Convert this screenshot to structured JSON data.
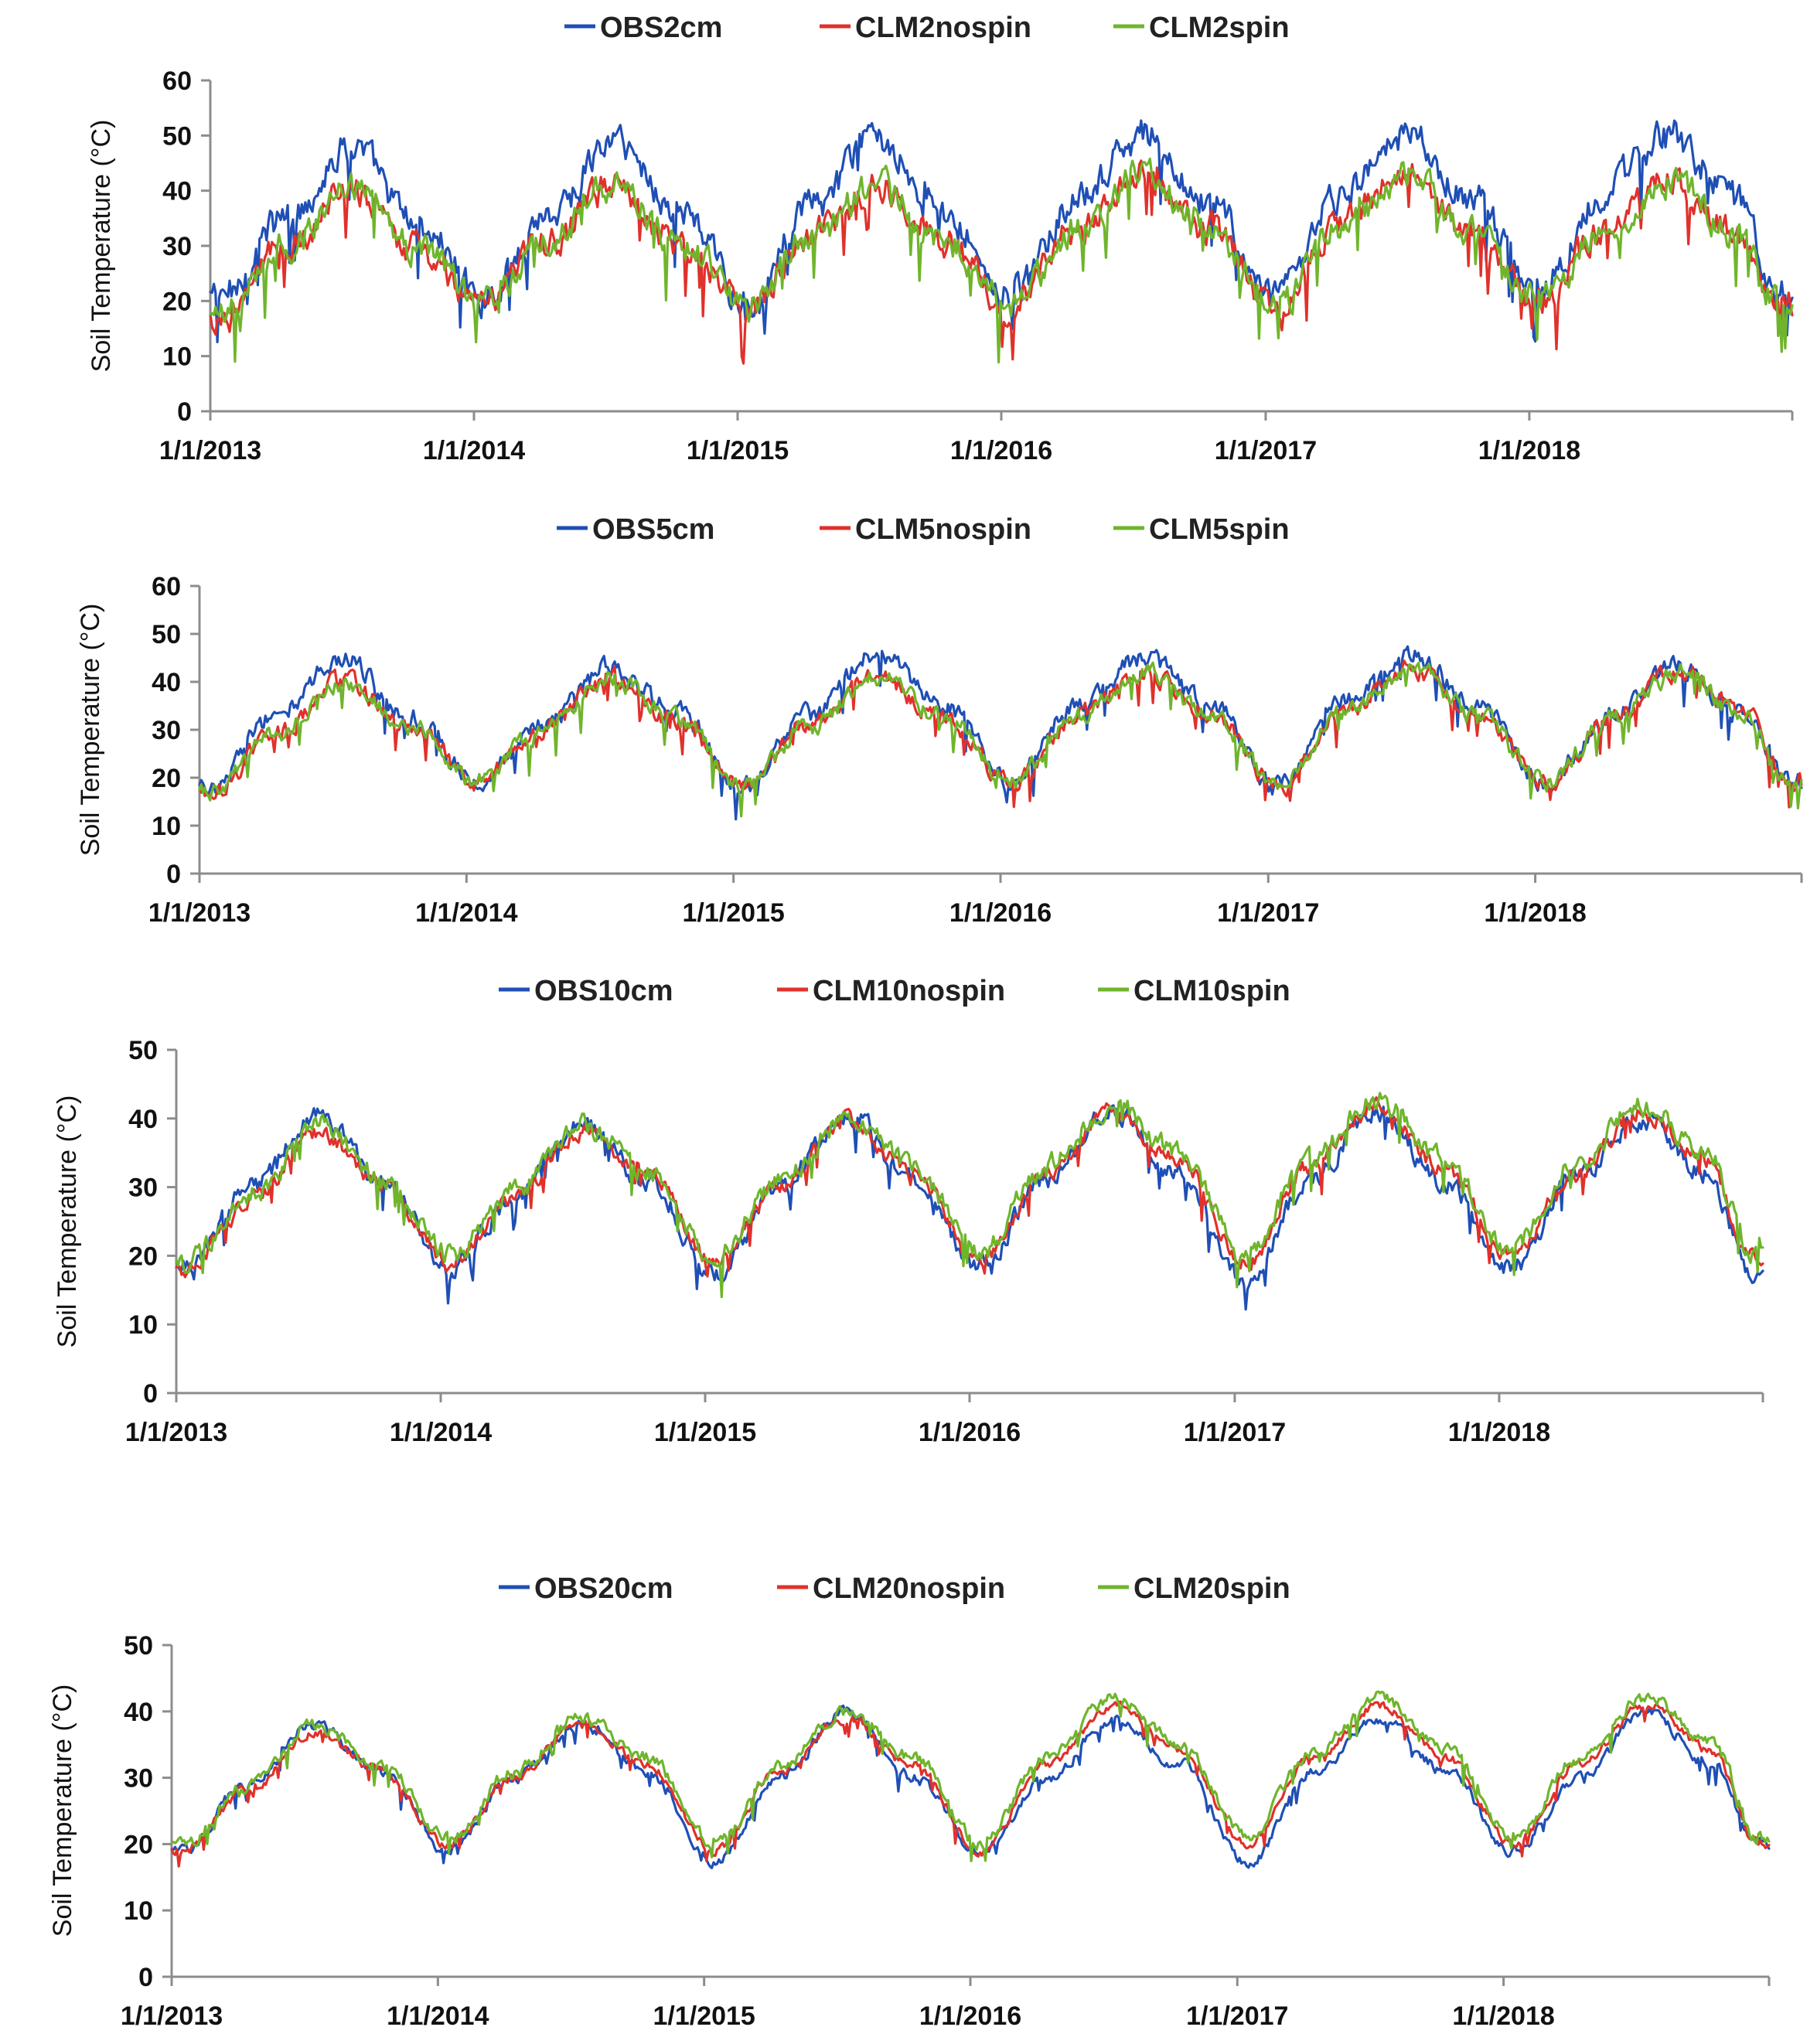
{
  "colors": {
    "obs": "#1f4fb5",
    "nospin": "#e0312b",
    "spin": "#6fb52c"
  },
  "chart_data": [
    {
      "type": "line",
      "depth_cm": 2,
      "ylabel": "Soil Temperature (°C)",
      "ylim": [
        0,
        60
      ],
      "yticks": [
        "0",
        "10",
        "20",
        "30",
        "40",
        "50",
        "60"
      ],
      "xlim": [
        "1/1/2013",
        "12/31/2018"
      ],
      "xticks": [
        "1/1/2013",
        "1/1/2014",
        "1/1/2015",
        "1/1/2016",
        "1/1/2017",
        "1/1/2018"
      ],
      "legend": [
        "OBS2cm",
        "CLM2nospin",
        "CLM2spin"
      ],
      "x": [
        "2013-01",
        "2013-04",
        "2013-07",
        "2013-10",
        "2014-01",
        "2014-04",
        "2014-07",
        "2014-10",
        "2015-01",
        "2015-04",
        "2015-07",
        "2015-10",
        "2016-01",
        "2016-04",
        "2016-07",
        "2016-10",
        "2017-01",
        "2017-04",
        "2017-07",
        "2017-10",
        "2018-01",
        "2018-04",
        "2018-07",
        "2018-10",
        "2018-12"
      ],
      "series": [
        {
          "name": "OBS2cm",
          "values": [
            21,
            35,
            48,
            34,
            21,
            36,
            49,
            36,
            20,
            37,
            50,
            36,
            21,
            38,
            50,
            38,
            20,
            39,
            50,
            38,
            22,
            40,
            50,
            38,
            22
          ]
        },
        {
          "name": "CLM2nospin",
          "values": [
            17,
            30,
            40,
            29,
            20,
            31,
            41,
            30,
            19,
            32,
            41,
            31,
            19,
            33,
            43,
            33,
            19,
            34,
            43,
            32,
            20,
            33,
            42,
            32,
            19
          ]
        },
        {
          "name": "CLM2spin",
          "values": [
            17,
            30,
            40,
            29,
            20,
            31,
            41,
            30,
            19,
            32,
            41,
            31,
            19,
            33,
            43,
            33,
            19,
            34,
            43,
            32,
            20,
            33,
            42,
            32,
            19
          ]
        }
      ]
    },
    {
      "type": "line",
      "depth_cm": 5,
      "ylabel": "Soil Temperature (°C)",
      "ylim": [
        0,
        60
      ],
      "yticks": [
        "0",
        "10",
        "20",
        "30",
        "40",
        "50",
        "60"
      ],
      "xlim": [
        "1/1/2013",
        "12/31/2018"
      ],
      "xticks": [
        "1/1/2013",
        "1/1/2014",
        "1/1/2015",
        "1/1/2016",
        "1/1/2017",
        "1/1/2018"
      ],
      "legend": [
        "OBS5cm",
        "CLM5nospin",
        "CLM5spin"
      ],
      "x": [
        "2013-01",
        "2013-04",
        "2013-07",
        "2013-10",
        "2014-01",
        "2014-04",
        "2014-07",
        "2014-10",
        "2015-01",
        "2015-04",
        "2015-07",
        "2015-10",
        "2016-01",
        "2016-04",
        "2016-07",
        "2016-10",
        "2017-01",
        "2017-04",
        "2017-07",
        "2017-10",
        "2018-01",
        "2018-04",
        "2018-07",
        "2018-10",
        "2018-12"
      ],
      "series": [
        {
          "name": "OBS5cm",
          "values": [
            18,
            33,
            45,
            33,
            19,
            31,
            43,
            34,
            18,
            33,
            46,
            35,
            19,
            35,
            45,
            35,
            18,
            36,
            46,
            35,
            19,
            33,
            43,
            33,
            19
          ]
        },
        {
          "name": "CLM5nospin",
          "values": [
            17,
            29,
            40,
            31,
            19,
            30,
            41,
            32,
            18,
            31,
            41,
            33,
            19,
            33,
            42,
            33,
            18,
            34,
            43,
            33,
            19,
            32,
            42,
            33,
            19
          ]
        },
        {
          "name": "CLM5spin",
          "values": [
            17,
            29,
            40,
            31,
            19,
            30,
            41,
            32,
            18,
            31,
            41,
            33,
            19,
            33,
            42,
            33,
            18,
            34,
            43,
            33,
            19,
            32,
            42,
            33,
            19
          ]
        }
      ]
    },
    {
      "type": "line",
      "depth_cm": 10,
      "ylabel": "Soil Temperature (°C)",
      "ylim": [
        0,
        50
      ],
      "yticks": [
        "0",
        "10",
        "20",
        "30",
        "40",
        "50"
      ],
      "xlim": [
        "1/1/2013",
        "12/31/2018"
      ],
      "xticks": [
        "1/1/2013",
        "1/1/2014",
        "1/1/2015",
        "1/1/2016",
        "1/1/2017",
        "1/1/2018"
      ],
      "legend": [
        "OBS10cm",
        "CLM10nospin",
        "CLM10spin"
      ],
      "x": [
        "2013-01",
        "2013-04",
        "2013-07",
        "2013-10",
        "2014-01",
        "2014-04",
        "2014-07",
        "2014-10",
        "2015-01",
        "2015-04",
        "2015-07",
        "2015-10",
        "2016-01",
        "2016-04",
        "2016-07",
        "2016-10",
        "2017-01",
        "2017-04",
        "2017-07",
        "2017-10",
        "2018-01",
        "2018-04",
        "2018-07",
        "2018-10",
        "2018-12"
      ],
      "series": [
        {
          "name": "OBS10cm",
          "values": [
            19,
            30,
            40,
            31,
            18,
            29,
            39,
            31,
            17,
            30,
            41,
            31,
            18,
            31,
            41,
            32,
            16,
            31,
            41,
            31,
            18,
            31,
            40,
            32,
            18
          ]
        },
        {
          "name": "CLM10nospin",
          "values": [
            18,
            28,
            38,
            30,
            19,
            29,
            38,
            32,
            19,
            30,
            40,
            32,
            19,
            32,
            41,
            34,
            19,
            33,
            42,
            33,
            20,
            32,
            41,
            34,
            20
          ]
        },
        {
          "name": "CLM10spin",
          "values": [
            19,
            29,
            39,
            31,
            20,
            30,
            39,
            32,
            20,
            31,
            40,
            33,
            20,
            33,
            42,
            35,
            20,
            34,
            43,
            34,
            21,
            33,
            42,
            35,
            21
          ]
        }
      ]
    },
    {
      "type": "line",
      "depth_cm": 20,
      "ylabel": "Soil Temperature (°C)",
      "ylim": [
        0,
        50
      ],
      "yticks": [
        "0",
        "10",
        "20",
        "30",
        "40",
        "50"
      ],
      "xlim": [
        "1/1/2013",
        "12/31/2018"
      ],
      "xticks": [
        "1/1/2013",
        "1/1/2014",
        "1/1/2015",
        "1/1/2016",
        "1/1/2017",
        "1/1/2018"
      ],
      "legend": [
        "OBS20cm",
        "CLM20nospin",
        "CLM20spin"
      ],
      "x": [
        "2013-01",
        "2013-04",
        "2013-07",
        "2013-10",
        "2014-01",
        "2014-04",
        "2014-07",
        "2014-10",
        "2015-01",
        "2015-04",
        "2015-07",
        "2015-10",
        "2016-01",
        "2016-04",
        "2016-07",
        "2016-10",
        "2017-01",
        "2017-04",
        "2017-07",
        "2017-10",
        "2018-01",
        "2018-04",
        "2018-07",
        "2018-10",
        "2018-12"
      ],
      "series": [
        {
          "name": "OBS20cm",
          "values": [
            19,
            29,
            38,
            31,
            19,
            30,
            38,
            31,
            17,
            30,
            40,
            30,
            19,
            30,
            39,
            32,
            17,
            31,
            39,
            31,
            19,
            30,
            40,
            32,
            20
          ]
        },
        {
          "name": "CLM20nospin",
          "values": [
            19,
            28,
            37,
            31,
            20,
            30,
            38,
            32,
            19,
            31,
            39,
            32,
            19,
            32,
            41,
            34,
            20,
            33,
            41,
            33,
            20,
            32,
            41,
            34,
            20
          ]
        },
        {
          "name": "CLM20spin",
          "values": [
            20,
            29,
            38,
            32,
            21,
            31,
            39,
            33,
            20,
            32,
            40,
            33,
            20,
            33,
            42,
            35,
            21,
            34,
            42,
            34,
            21,
            33,
            42,
            35,
            21
          ]
        }
      ]
    }
  ]
}
